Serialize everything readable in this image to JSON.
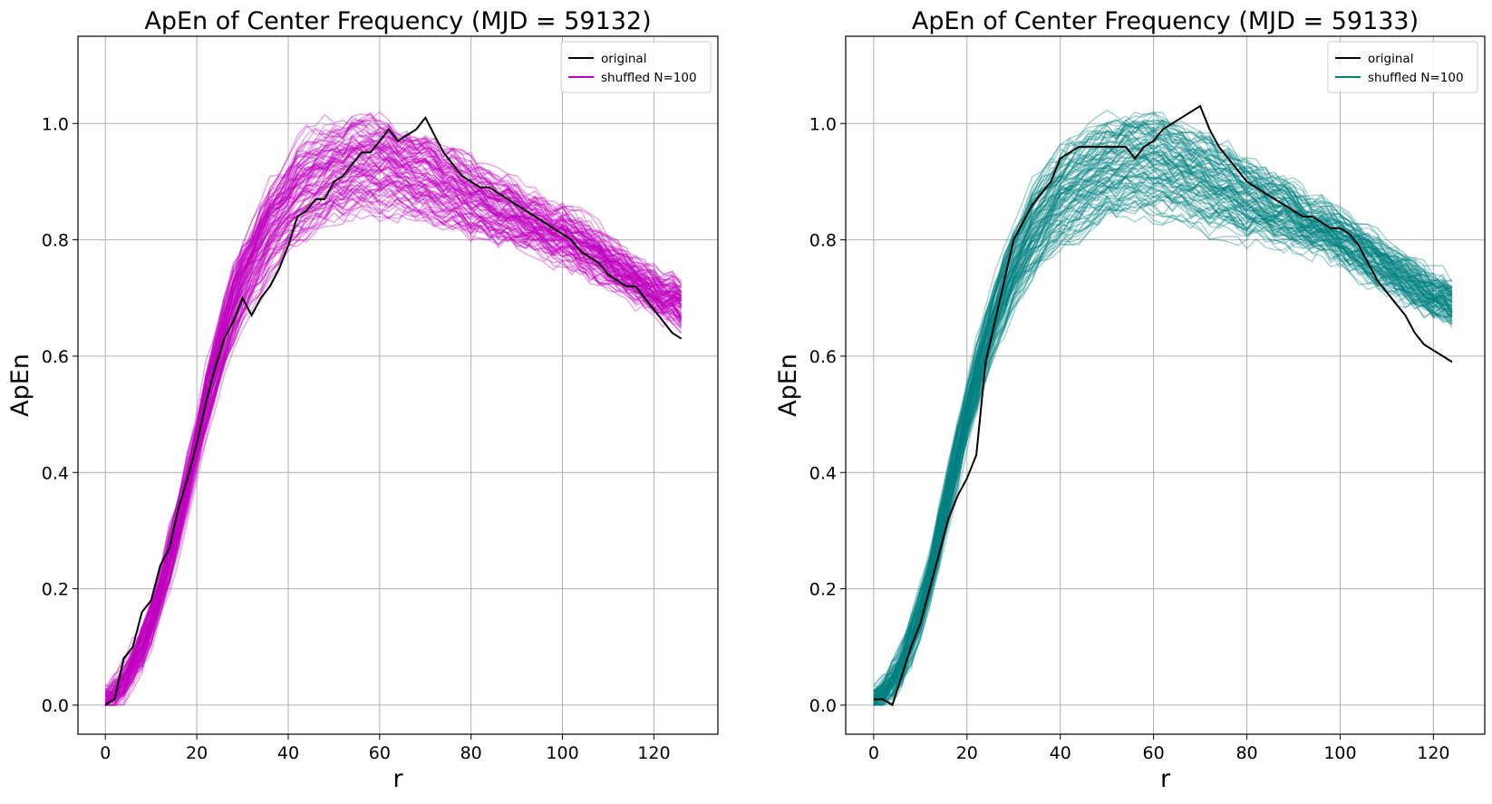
{
  "chart_data": [
    {
      "type": "line",
      "title": "ApEn of Center Frequency (MJD = 59132)",
      "xlabel": "r",
      "ylabel": "ApEn",
      "xlim": [
        -6,
        134
      ],
      "ylim": [
        -0.05,
        1.15
      ],
      "xticks": [
        0,
        20,
        40,
        60,
        80,
        100,
        120
      ],
      "yticks": [
        0.0,
        0.2,
        0.4,
        0.6,
        0.8,
        1.0
      ],
      "grid": true,
      "legend": {
        "position": "top-right",
        "entries": [
          "original",
          "shuffled N=100"
        ]
      },
      "series": [
        {
          "name": "original",
          "color": "#000000",
          "x": [
            0,
            2,
            4,
            6,
            8,
            10,
            12,
            14,
            16,
            18,
            20,
            22,
            24,
            26,
            28,
            30,
            32,
            34,
            36,
            38,
            40,
            42,
            44,
            46,
            48,
            50,
            52,
            54,
            56,
            58,
            60,
            62,
            64,
            66,
            68,
            70,
            72,
            74,
            76,
            78,
            80,
            82,
            84,
            86,
            88,
            90,
            92,
            94,
            96,
            98,
            100,
            102,
            104,
            106,
            108,
            110,
            112,
            114,
            116,
            118,
            120,
            122,
            124,
            126
          ],
          "values": [
            0.0,
            0.01,
            0.08,
            0.1,
            0.16,
            0.18,
            0.24,
            0.27,
            0.34,
            0.39,
            0.45,
            0.52,
            0.58,
            0.63,
            0.66,
            0.7,
            0.67,
            0.7,
            0.72,
            0.75,
            0.79,
            0.84,
            0.85,
            0.87,
            0.87,
            0.9,
            0.91,
            0.93,
            0.95,
            0.95,
            0.97,
            0.99,
            0.97,
            0.98,
            0.99,
            1.01,
            0.98,
            0.95,
            0.93,
            0.91,
            0.9,
            0.89,
            0.89,
            0.88,
            0.87,
            0.86,
            0.85,
            0.84,
            0.83,
            0.82,
            0.81,
            0.8,
            0.78,
            0.77,
            0.76,
            0.74,
            0.73,
            0.72,
            0.72,
            0.7,
            0.68,
            0.66,
            0.64,
            0.63
          ]
        },
        {
          "name": "shuffled N=100",
          "color": "#c000c0",
          "runs": 100,
          "x": [
            0,
            2,
            4,
            6,
            8,
            10,
            12,
            14,
            16,
            18,
            20,
            22,
            24,
            26,
            28,
            30,
            32,
            34,
            36,
            38,
            40,
            42,
            44,
            46,
            48,
            50,
            52,
            54,
            56,
            58,
            60,
            62,
            64,
            66,
            68,
            70,
            72,
            74,
            76,
            78,
            80,
            82,
            84,
            86,
            88,
            90,
            92,
            94,
            96,
            98,
            100,
            102,
            104,
            106,
            108,
            110,
            112,
            114,
            116,
            118,
            120,
            122,
            124,
            126
          ],
          "mean_values": [
            0.01,
            0.02,
            0.04,
            0.07,
            0.1,
            0.14,
            0.19,
            0.25,
            0.31,
            0.38,
            0.45,
            0.52,
            0.58,
            0.64,
            0.69,
            0.73,
            0.76,
            0.79,
            0.82,
            0.84,
            0.86,
            0.88,
            0.89,
            0.9,
            0.91,
            0.92,
            0.92,
            0.93,
            0.93,
            0.93,
            0.93,
            0.93,
            0.92,
            0.92,
            0.91,
            0.91,
            0.9,
            0.89,
            0.89,
            0.88,
            0.87,
            0.87,
            0.86,
            0.85,
            0.85,
            0.84,
            0.83,
            0.83,
            0.82,
            0.81,
            0.81,
            0.8,
            0.79,
            0.78,
            0.77,
            0.76,
            0.75,
            0.74,
            0.73,
            0.72,
            0.71,
            0.7,
            0.7,
            0.69
          ],
          "spread_values": [
            0.01,
            0.01,
            0.02,
            0.02,
            0.03,
            0.03,
            0.03,
            0.04,
            0.04,
            0.04,
            0.04,
            0.05,
            0.05,
            0.05,
            0.06,
            0.06,
            0.06,
            0.07,
            0.07,
            0.07,
            0.07,
            0.08,
            0.08,
            0.08,
            0.08,
            0.08,
            0.08,
            0.08,
            0.08,
            0.08,
            0.08,
            0.08,
            0.07,
            0.07,
            0.07,
            0.07,
            0.07,
            0.06,
            0.06,
            0.06,
            0.06,
            0.05,
            0.05,
            0.05,
            0.05,
            0.05,
            0.04,
            0.04,
            0.04,
            0.04,
            0.04,
            0.04,
            0.04,
            0.04,
            0.04,
            0.03,
            0.03,
            0.03,
            0.03,
            0.03,
            0.03,
            0.03,
            0.03,
            0.03
          ]
        }
      ]
    },
    {
      "type": "line",
      "title": "ApEn of Center Frequency (MJD = 59133)",
      "xlabel": "r",
      "ylabel": "ApEn",
      "xlim": [
        -6,
        131
      ],
      "ylim": [
        -0.05,
        1.15
      ],
      "xticks": [
        0,
        20,
        40,
        60,
        80,
        100,
        120
      ],
      "yticks": [
        0.0,
        0.2,
        0.4,
        0.6,
        0.8,
        1.0
      ],
      "grid": true,
      "legend": {
        "position": "top-right",
        "entries": [
          "original",
          "shuffled N=100"
        ]
      },
      "series": [
        {
          "name": "original",
          "color": "#000000",
          "x": [
            0,
            2,
            4,
            6,
            8,
            10,
            12,
            14,
            16,
            18,
            20,
            22,
            24,
            26,
            28,
            30,
            32,
            34,
            36,
            38,
            40,
            42,
            44,
            46,
            48,
            50,
            52,
            54,
            56,
            58,
            60,
            62,
            64,
            66,
            68,
            70,
            72,
            74,
            76,
            78,
            80,
            82,
            84,
            86,
            88,
            90,
            92,
            94,
            96,
            98,
            100,
            102,
            104,
            106,
            108,
            110,
            112,
            114,
            116,
            118,
            120,
            122,
            124
          ],
          "values": [
            0.01,
            0.01,
            0.0,
            0.05,
            0.1,
            0.14,
            0.2,
            0.26,
            0.32,
            0.36,
            0.39,
            0.43,
            0.59,
            0.66,
            0.73,
            0.8,
            0.83,
            0.86,
            0.88,
            0.9,
            0.94,
            0.95,
            0.96,
            0.96,
            0.96,
            0.96,
            0.96,
            0.96,
            0.94,
            0.96,
            0.97,
            0.99,
            1.0,
            1.01,
            1.02,
            1.03,
            0.99,
            0.96,
            0.94,
            0.92,
            0.9,
            0.89,
            0.88,
            0.87,
            0.86,
            0.85,
            0.84,
            0.84,
            0.83,
            0.82,
            0.82,
            0.81,
            0.79,
            0.76,
            0.73,
            0.71,
            0.69,
            0.67,
            0.64,
            0.62,
            0.61,
            0.6,
            0.59
          ]
        },
        {
          "name": "shuffled N=100",
          "color": "#008080",
          "runs": 100,
          "x": [
            0,
            2,
            4,
            6,
            8,
            10,
            12,
            14,
            16,
            18,
            20,
            22,
            24,
            26,
            28,
            30,
            32,
            34,
            36,
            38,
            40,
            42,
            44,
            46,
            48,
            50,
            52,
            54,
            56,
            58,
            60,
            62,
            64,
            66,
            68,
            70,
            72,
            74,
            76,
            78,
            80,
            82,
            84,
            86,
            88,
            90,
            92,
            94,
            96,
            98,
            100,
            102,
            104,
            106,
            108,
            110,
            112,
            114,
            116,
            118,
            120,
            122,
            124
          ],
          "mean_values": [
            0.01,
            0.02,
            0.04,
            0.07,
            0.11,
            0.16,
            0.22,
            0.29,
            0.36,
            0.43,
            0.5,
            0.56,
            0.62,
            0.67,
            0.71,
            0.75,
            0.78,
            0.81,
            0.83,
            0.85,
            0.87,
            0.88,
            0.89,
            0.9,
            0.91,
            0.92,
            0.92,
            0.93,
            0.93,
            0.93,
            0.93,
            0.93,
            0.92,
            0.92,
            0.91,
            0.91,
            0.9,
            0.89,
            0.89,
            0.88,
            0.87,
            0.87,
            0.86,
            0.85,
            0.85,
            0.84,
            0.83,
            0.82,
            0.82,
            0.81,
            0.8,
            0.79,
            0.78,
            0.77,
            0.76,
            0.75,
            0.74,
            0.73,
            0.72,
            0.71,
            0.7,
            0.7,
            0.69
          ],
          "spread_values": [
            0.01,
            0.01,
            0.02,
            0.02,
            0.03,
            0.03,
            0.03,
            0.04,
            0.04,
            0.04,
            0.04,
            0.05,
            0.05,
            0.05,
            0.06,
            0.06,
            0.06,
            0.07,
            0.07,
            0.07,
            0.07,
            0.08,
            0.08,
            0.08,
            0.08,
            0.08,
            0.08,
            0.08,
            0.08,
            0.08,
            0.08,
            0.08,
            0.07,
            0.07,
            0.07,
            0.07,
            0.07,
            0.06,
            0.06,
            0.06,
            0.06,
            0.05,
            0.05,
            0.05,
            0.05,
            0.05,
            0.04,
            0.04,
            0.04,
            0.04,
            0.04,
            0.04,
            0.04,
            0.04,
            0.04,
            0.03,
            0.03,
            0.03,
            0.03,
            0.03,
            0.03,
            0.03,
            0.03
          ]
        }
      ]
    }
  ]
}
